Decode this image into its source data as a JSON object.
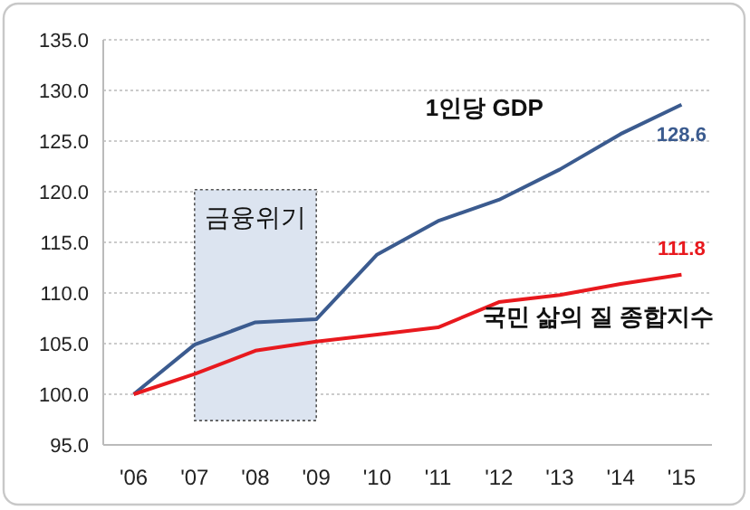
{
  "chart_data": {
    "type": "line",
    "categories": [
      "'06",
      "'07",
      "'08",
      "'09",
      "'10",
      "'11",
      "'12",
      "'13",
      "'14",
      "'15"
    ],
    "series": [
      {
        "name": "1인당 GDP",
        "color": "#3b5b8f",
        "values": [
          100.0,
          104.9,
          107.1,
          107.4,
          113.8,
          117.1,
          119.2,
          122.2,
          125.7,
          128.6
        ],
        "value_labels": [
          null,
          null,
          null,
          null,
          null,
          null,
          null,
          null,
          null,
          "128.6"
        ]
      },
      {
        "name": "국민 삶의 질 종합지수",
        "color": "#e8191e",
        "values": [
          100.0,
          102.0,
          104.3,
          105.2,
          105.9,
          106.6,
          109.1,
          109.8,
          110.9,
          111.8
        ],
        "value_labels": [
          null,
          null,
          null,
          null,
          null,
          null,
          null,
          null,
          null,
          "111.8"
        ]
      }
    ],
    "ylim": [
      95,
      135
    ],
    "yticks": [
      {
        "value": 95,
        "label": "95.0"
      },
      {
        "value": 100,
        "label": "100.0"
      },
      {
        "value": 105,
        "label": "105.0"
      },
      {
        "value": 110,
        "label": "110.0"
      },
      {
        "value": 115,
        "label": "115.0"
      },
      {
        "value": 120,
        "label": "120.0"
      },
      {
        "value": 125,
        "label": "125.0"
      },
      {
        "value": 130,
        "label": "130.0"
      },
      {
        "value": 135,
        "label": "135.0"
      }
    ],
    "grid": "y",
    "marker": "none",
    "line_style": "solid",
    "bands": [
      {
        "axis": "x",
        "from": "'07",
        "to": "'09",
        "label": "금융위기",
        "color": "#dce4f0"
      }
    ]
  }
}
